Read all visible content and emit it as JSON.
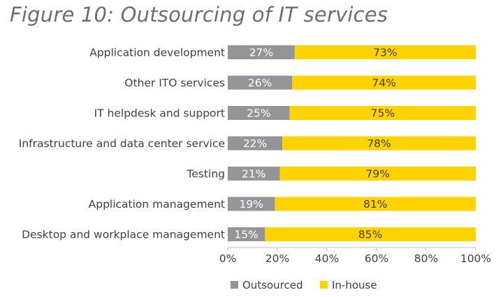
{
  "chart_data": {
    "type": "bar",
    "orientation": "horizontal",
    "stacked": true,
    "title": "Figure 10: Outsourcing of IT services",
    "categories": [
      "Application development",
      "Other ITO services",
      "IT helpdesk and support",
      "Infrastructure and data center service",
      "Testing",
      "Application management",
      "Desktop and workplace management"
    ],
    "series": [
      {
        "name": "Outsourced",
        "color": "#939598",
        "label_color": "#ffffff",
        "values": [
          27,
          26,
          25,
          22,
          21,
          19,
          15
        ]
      },
      {
        "name": "In-house",
        "color": "#ffd200",
        "label_color": "#404040",
        "values": [
          73,
          74,
          75,
          78,
          79,
          81,
          85
        ]
      }
    ],
    "data_labels": [
      [
        "27%",
        "26%",
        "25%",
        "22%",
        "21%",
        "19%",
        "15%"
      ],
      [
        "73%",
        "74%",
        "75%",
        "78%",
        "79%",
        "81%",
        "85%"
      ]
    ],
    "xlim": [
      0,
      100
    ],
    "xticks": [
      0,
      20,
      40,
      60,
      80,
      100
    ],
    "xtick_labels": [
      "0%",
      "20%",
      "40%",
      "60%",
      "80%",
      "100%"
    ],
    "xlabel": "",
    "ylabel": "",
    "grid": false,
    "legend": {
      "position": "bottom",
      "entries": [
        "Outsourced",
        "In-house"
      ]
    }
  }
}
